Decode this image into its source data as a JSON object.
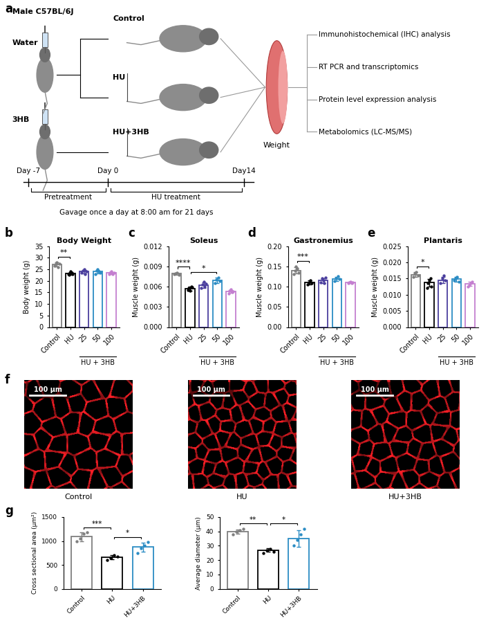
{
  "panel_labels": [
    "a",
    "b",
    "c",
    "d",
    "e",
    "f",
    "g"
  ],
  "schematic": {
    "strain": "Male C57BL/6J",
    "pretreatments": [
      "Water",
      "3HB"
    ],
    "groups": [
      "Control",
      "HU",
      "HU+3HB"
    ],
    "measure": "Weight",
    "analyses": [
      "Immunohistochemical (IHC) analysis",
      "RT PCR and transcriptomics",
      "Protein level expression analysis",
      "Metabolomics (LC-MS/MS)"
    ],
    "timeline": {
      "days": [
        "Day -7",
        "Day 0",
        "Day14"
      ],
      "phases": [
        "Pretreatment",
        "HU treatment"
      ],
      "note": "Gavage once a day at 8:00 am for 21 days"
    }
  },
  "chart_data": [
    {
      "type": "bar",
      "title": "Body Weight",
      "y_label": "Body weight (g)",
      "categories": [
        "Control",
        "HU",
        "25",
        "50",
        "100"
      ],
      "values": [
        27.1,
        23.2,
        24.0,
        24.0,
        23.4
      ],
      "errors": [
        0.9,
        0.6,
        0.8,
        0.8,
        0.4
      ],
      "points": [
        [
          26.5,
          27.5,
          28,
          26,
          27.5
        ],
        [
          23,
          22.5,
          24,
          23.5,
          23
        ],
        [
          23.5,
          24.5,
          25,
          23,
          24
        ],
        [
          23,
          24.5,
          25,
          24,
          23.5
        ],
        [
          23,
          23.5,
          24,
          23,
          23.5
        ]
      ],
      "colors": [
        "#7f7f7f",
        "#000000",
        "#4b3f9e",
        "#2b8cc4",
        "#c47fd0"
      ],
      "ylim": [
        0,
        35
      ],
      "yticks": [
        0,
        5,
        10,
        15,
        20,
        25,
        30,
        35
      ],
      "group": {
        "label": "HU + 3HB",
        "categories": [
          "25",
          "50",
          "100"
        ]
      },
      "significance": [
        {
          "from": "Control",
          "to": "HU",
          "label": "**"
        }
      ]
    },
    {
      "type": "bar",
      "title": "Soleus",
      "y_label": "Muscle weight (g)",
      "categories": [
        "Control",
        "HU",
        "25",
        "50",
        "100"
      ],
      "values": [
        0.0079,
        0.0057,
        0.0062,
        0.0069,
        0.0053
      ],
      "errors": [
        0.0002,
        0.0003,
        0.0004,
        0.0004,
        0.0002
      ],
      "points": [
        [
          0.0078,
          0.008,
          0.0081,
          0.0077
        ],
        [
          0.0055,
          0.0058,
          0.0054,
          0.006,
          0.0059
        ],
        [
          0.0058,
          0.0063,
          0.0067,
          0.006,
          0.0064
        ],
        [
          0.0065,
          0.007,
          0.0073,
          0.0068
        ],
        [
          0.005,
          0.0054,
          0.0056,
          0.0052,
          0.0053
        ]
      ],
      "colors": [
        "#7f7f7f",
        "#000000",
        "#4b3f9e",
        "#2b8cc4",
        "#c47fd0"
      ],
      "ylim": [
        0,
        0.012
      ],
      "yticks": [
        {
          "value": 0,
          "label": "0.000"
        },
        {
          "value": 0.003,
          "label": "0.003"
        },
        {
          "value": 0.006,
          "label": "0.006"
        },
        {
          "value": 0.009,
          "label": "0.009"
        },
        {
          "value": 0.012,
          "label": "0.012"
        }
      ],
      "group": {
        "label": "HU + 3HB",
        "categories": [
          "25",
          "50",
          "100"
        ]
      },
      "significance": [
        {
          "from": "Control",
          "to": "HU",
          "label": "****"
        },
        {
          "from": "HU",
          "to": "50",
          "label": "*"
        }
      ]
    },
    {
      "type": "bar",
      "title": "Gastronemius",
      "y_label": "Muscle weight (g)",
      "categories": [
        "Control",
        "HU",
        "25",
        "50",
        "100"
      ],
      "values": [
        0.14,
        0.11,
        0.115,
        0.119,
        0.11
      ],
      "errors": [
        0.008,
        0.005,
        0.006,
        0.005,
        0.002
      ],
      "points": [
        [
          0.13,
          0.14,
          0.15,
          0.145,
          0.135
        ],
        [
          0.105,
          0.11,
          0.115,
          0.108
        ],
        [
          0.11,
          0.12,
          0.115,
          0.108,
          0.122
        ],
        [
          0.113,
          0.12,
          0.125,
          0.118
        ],
        [
          0.108,
          0.11,
          0.112,
          0.109,
          0.111
        ]
      ],
      "colors": [
        "#7f7f7f",
        "#000000",
        "#4b3f9e",
        "#2b8cc4",
        "#c47fd0"
      ],
      "ylim": [
        0,
        0.2
      ],
      "yticks": [
        {
          "value": 0,
          "label": "0.00"
        },
        {
          "value": 0.05,
          "label": "0.05"
        },
        {
          "value": 0.1,
          "label": "0.10"
        },
        {
          "value": 0.15,
          "label": "0.15"
        },
        {
          "value": 0.2,
          "label": "0.20"
        }
      ],
      "group": {
        "label": "HU + 3HB",
        "categories": [
          "25",
          "50",
          "100"
        ]
      },
      "significance": [
        {
          "from": "Control",
          "to": "HU",
          "label": "***"
        }
      ]
    },
    {
      "type": "bar",
      "title": "Plantaris",
      "y_label": "Muscle weight (g)",
      "categories": [
        "Control",
        "HU",
        "25",
        "50",
        "100"
      ],
      "values": [
        0.0162,
        0.0137,
        0.0145,
        0.0148,
        0.0133
      ],
      "errors": [
        0.0007,
        0.0012,
        0.001,
        0.0007,
        0.0006
      ],
      "points": [
        [
          0.0155,
          0.0165,
          0.017,
          0.016
        ],
        [
          0.012,
          0.0135,
          0.0145,
          0.015,
          0.0125
        ],
        [
          0.0135,
          0.015,
          0.016,
          0.0145
        ],
        [
          0.0145,
          0.015,
          0.0155,
          0.014
        ],
        [
          0.0125,
          0.013,
          0.0135,
          0.014
        ]
      ],
      "colors": [
        "#7f7f7f",
        "#000000",
        "#4b3f9e",
        "#2b8cc4",
        "#c47fd0"
      ],
      "ylim": [
        0,
        0.025
      ],
      "yticks": [
        {
          "value": 0,
          "label": "0.000"
        },
        {
          "value": 0.005,
          "label": "0.005"
        },
        {
          "value": 0.01,
          "label": "0.010"
        },
        {
          "value": 0.015,
          "label": "0.015"
        },
        {
          "value": 0.02,
          "label": "0.020"
        },
        {
          "value": 0.025,
          "label": "0.025"
        }
      ],
      "group": {
        "label": "HU + 3HB",
        "categories": [
          "25",
          "50",
          "100"
        ]
      },
      "significance": [
        {
          "from": "Control",
          "to": "HU",
          "label": "*"
        }
      ]
    },
    {
      "type": "bar",
      "y_label": "Cross sectional area (μm²)",
      "categories": [
        "Control",
        "HU",
        "HU+3HB"
      ],
      "values": [
        1090,
        660,
        870
      ],
      "errors": [
        90,
        50,
        100
      ],
      "points": [
        [
          1000,
          1050,
          1150,
          1180
        ],
        [
          600,
          650,
          700,
          680
        ],
        [
          750,
          850,
          900,
          980
        ]
      ],
      "colors": [
        "#7f7f7f",
        "#000000",
        "#2b8cc4"
      ],
      "ylim": [
        0,
        1500
      ],
      "yticks": [
        0,
        500,
        1000,
        1500
      ],
      "significance": [
        {
          "from": "Control",
          "to": "HU",
          "label": "***"
        },
        {
          "from": "HU",
          "to": "HU+3HB",
          "label": "*"
        }
      ]
    },
    {
      "type": "bar",
      "y_label": "Average diameter (μm)",
      "categories": [
        "Control",
        "HU",
        "HU+3HB"
      ],
      "values": [
        40,
        27,
        35
      ],
      "errors": [
        1.5,
        1.2,
        6
      ],
      "points": [
        [
          38,
          40,
          41,
          42
        ],
        [
          25,
          27,
          28,
          26
        ],
        [
          30,
          34,
          38,
          42
        ]
      ],
      "colors": [
        "#7f7f7f",
        "#000000",
        "#2b8cc4"
      ],
      "ylim": [
        0,
        50
      ],
      "yticks": [
        0,
        10,
        20,
        30,
        40,
        50
      ],
      "significance": [
        {
          "from": "Control",
          "to": "HU",
          "label": "**"
        },
        {
          "from": "HU",
          "to": "HU+3HB",
          "label": "*"
        }
      ]
    }
  ],
  "micrographs": {
    "scale_bar": "100 μm",
    "labels": [
      "Control",
      "HU",
      "HU+3HB"
    ]
  }
}
